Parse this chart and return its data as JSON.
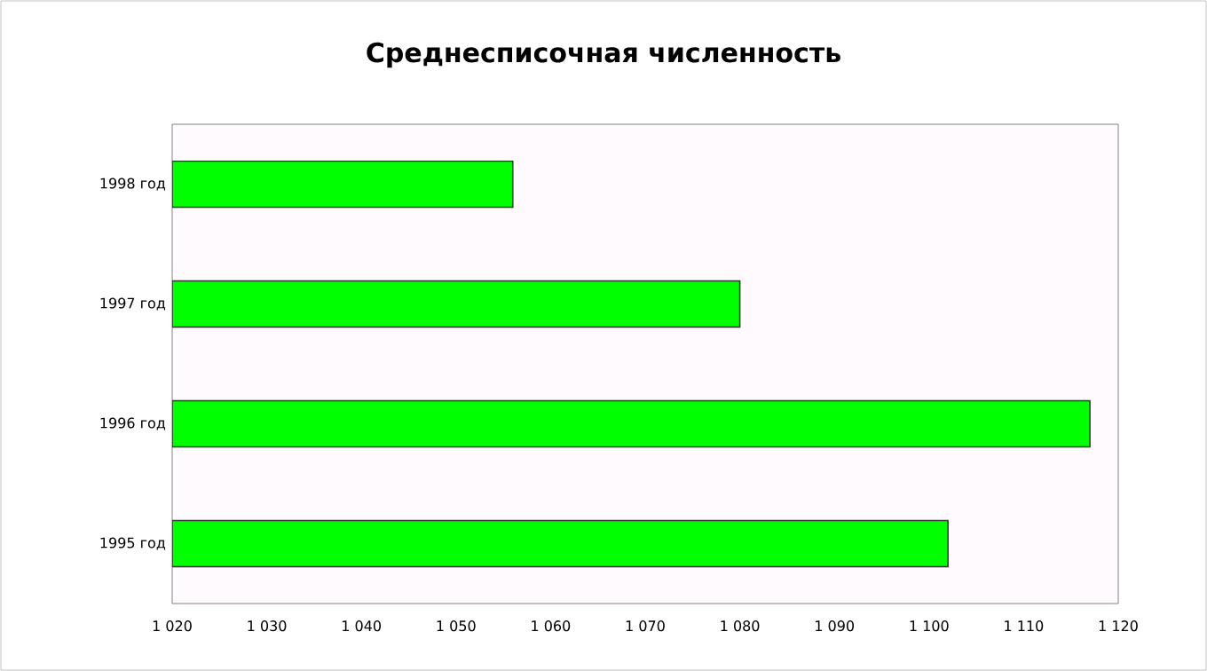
{
  "chart_data": {
    "type": "bar",
    "orientation": "horizontal",
    "title": "Среднесписочная численность",
    "categories": [
      "1998 год",
      "1997 год",
      "1996 год",
      "1995 год"
    ],
    "values": [
      1056,
      1080,
      1117,
      1102
    ],
    "color": "#00ff00",
    "xlim": [
      1020,
      1120
    ],
    "xticks": [
      {
        "value": 1020,
        "label": "1 020"
      },
      {
        "value": 1030,
        "label": "1 030"
      },
      {
        "value": 1040,
        "label": "1 040"
      },
      {
        "value": 1050,
        "label": "1 050"
      },
      {
        "value": 1060,
        "label": "1 060"
      },
      {
        "value": 1070,
        "label": "1 070"
      },
      {
        "value": 1080,
        "label": "1 080"
      },
      {
        "value": 1090,
        "label": "1 090"
      },
      {
        "value": 1100,
        "label": "1 100"
      },
      {
        "value": 1110,
        "label": "1 110"
      },
      {
        "value": 1120,
        "label": "1 120"
      }
    ],
    "grid": false
  }
}
